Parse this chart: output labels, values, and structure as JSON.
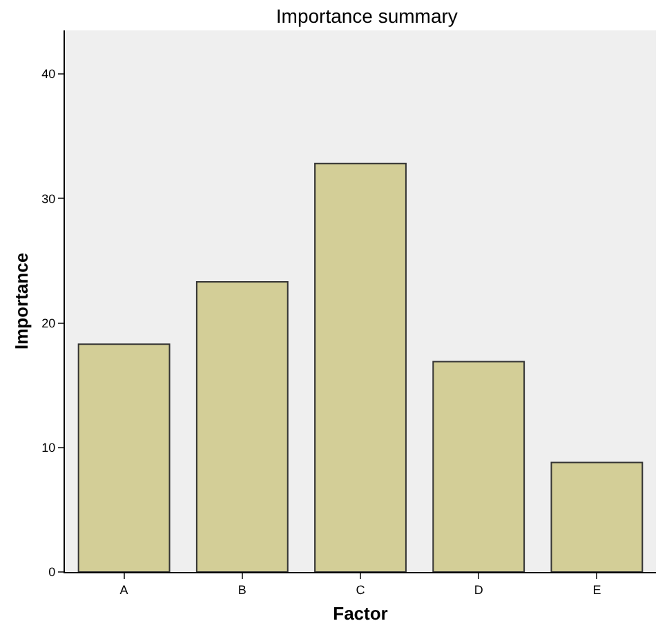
{
  "chart_data": {
    "type": "bar",
    "title": "Importance summary",
    "xlabel": "Factor",
    "ylabel": "Importance",
    "categories": [
      "A",
      "B",
      "C",
      "D",
      "E"
    ],
    "values": [
      18.3,
      23.3,
      32.8,
      16.9,
      8.8
    ],
    "color": "#d3ce97",
    "ylim": [
      0,
      43.5
    ],
    "yticks": [
      0,
      10,
      20,
      30,
      40
    ],
    "grid": false,
    "legend": false
  }
}
